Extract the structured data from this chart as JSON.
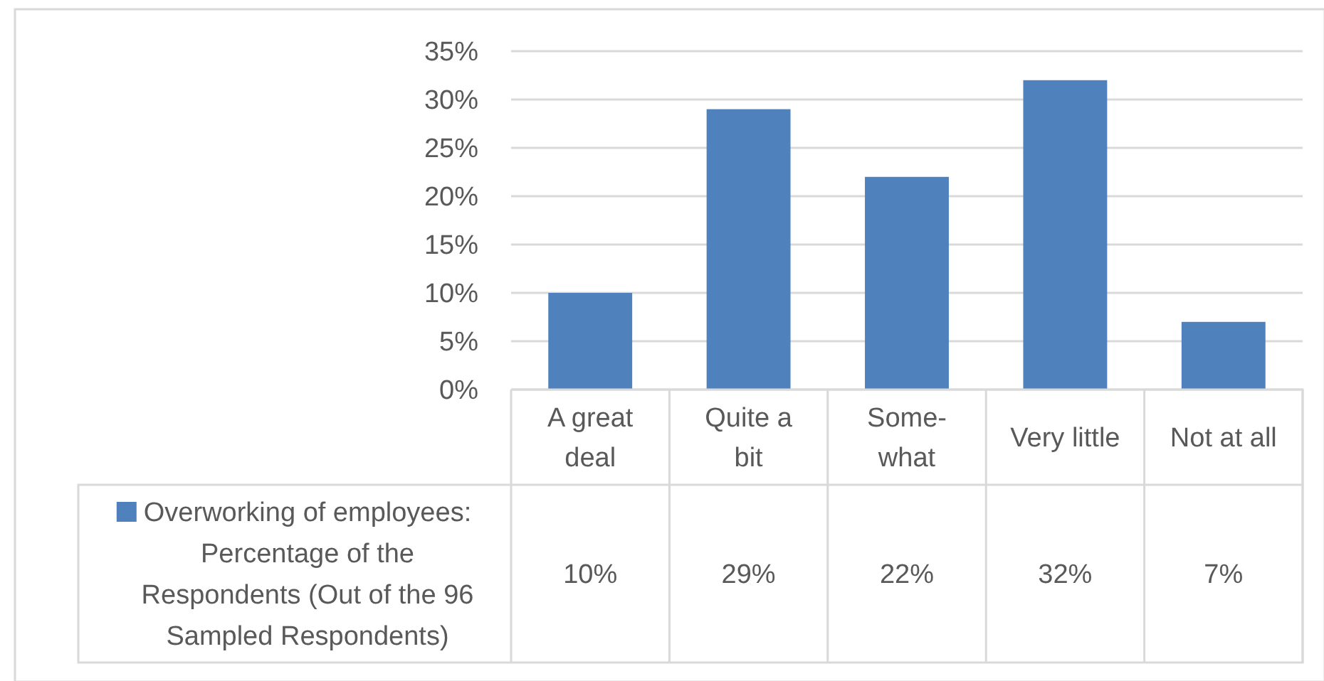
{
  "chart_data": {
    "type": "bar",
    "categories": [
      "A great deal",
      "Quite a bit",
      "Some-what",
      "Very little",
      "Not at all"
    ],
    "series": [
      {
        "name": "Overworking of employees: Percentage of the Respondents (Out of the 96 Sampled Respondents)",
        "color": "#4f81bd",
        "values": [
          10,
          29,
          22,
          32,
          7
        ],
        "value_labels": [
          "10%",
          "29%",
          "22%",
          "32%",
          "7%"
        ]
      }
    ],
    "ylim": [
      0,
      35
    ],
    "yticks": [
      {
        "value": 0,
        "label": "0%"
      },
      {
        "value": 5,
        "label": "5%"
      },
      {
        "value": 10,
        "label": "10%"
      },
      {
        "value": 15,
        "label": "15%"
      },
      {
        "value": 20,
        "label": "20%"
      },
      {
        "value": 25,
        "label": "25%"
      },
      {
        "value": 30,
        "label": "30%"
      },
      {
        "value": 35,
        "label": "35%"
      }
    ],
    "grid": "y",
    "legend": "bottom left"
  }
}
